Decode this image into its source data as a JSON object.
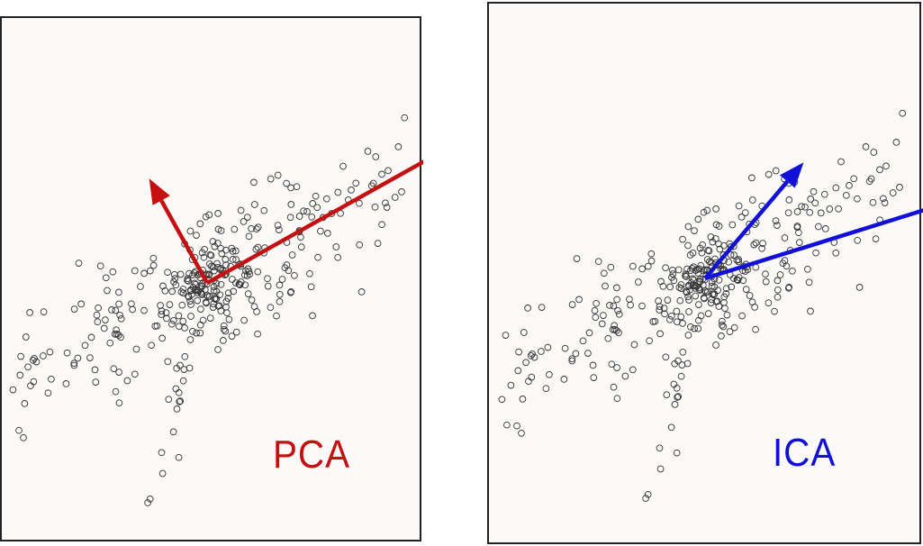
{
  "chart_data": [
    {
      "type": "scatter",
      "title": "PCA",
      "xlabel": "",
      "ylabel": "",
      "marker": "open-circle",
      "arrow_color": "#c41010",
      "label_color": "#c41010",
      "center": [
        0,
        0
      ],
      "vectors": [
        {
          "dx": 1.0,
          "dy": 0.56
        },
        {
          "dx": -0.2,
          "dy": 0.36
        }
      ]
    },
    {
      "type": "scatter",
      "title": "ICA",
      "xlabel": "",
      "ylabel": "",
      "marker": "open-circle",
      "arrow_color": "#1010d8",
      "label_color": "#1010d8",
      "center": [
        0,
        0
      ],
      "vectors": [
        {
          "dx": 0.34,
          "dy": 0.4
        },
        {
          "dx": 0.93,
          "dy": 0.29
        }
      ]
    }
  ]
}
